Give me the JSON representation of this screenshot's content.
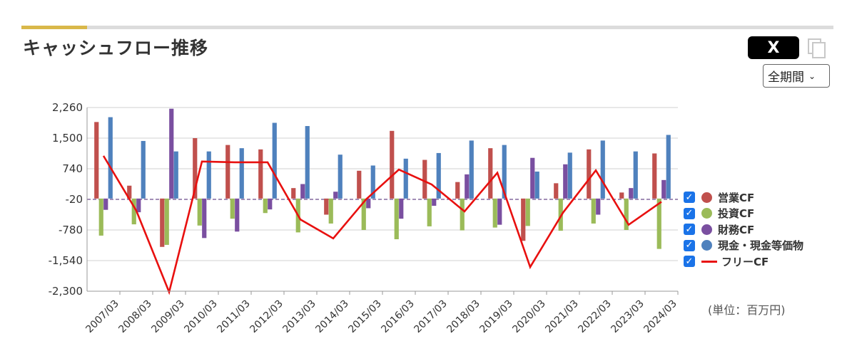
{
  "header": {
    "title": "キャッシュフロー推移",
    "share_label": "X",
    "period_select": "全期間",
    "unit_note": "(単位：百万円)"
  },
  "legend": [
    {
      "label": "営業CF",
      "color": "#c0504d",
      "checked": true
    },
    {
      "label": "投資CF",
      "color": "#9bbb59",
      "checked": true
    },
    {
      "label": "財務CF",
      "color": "#7a4fa0",
      "checked": true
    },
    {
      "label": "現金・現金等価物",
      "color": "#4f81bd",
      "checked": true
    },
    {
      "label": "フリーCF",
      "color": "#e8100f",
      "checked": true
    }
  ],
  "chart_data": {
    "type": "bar",
    "categories": [
      "2007/03",
      "2008/03",
      "2009/03",
      "2010/03",
      "2011/03",
      "2012/03",
      "2013/03",
      "2014/03",
      "2015/03",
      "2016/03",
      "2017/03",
      "2018/03",
      "2019/03",
      "2020/03",
      "2021/03",
      "2022/03",
      "2023/03",
      "2024/03"
    ],
    "yticks": [
      2260,
      1500,
      740,
      -20,
      -780,
      -1540,
      -2300
    ],
    "ytick_labels": [
      "2,260",
      "1,500",
      "740",
      "-20",
      "-780",
      "-1,540",
      "-2,300"
    ],
    "ylim": [
      -2300,
      2260
    ],
    "series": [
      {
        "name": "営業CF",
        "type": "bar",
        "color": "#c0504d",
        "values": [
          1900,
          320,
          -1200,
          1500,
          1330,
          1220,
          260,
          -400,
          690,
          1680,
          960,
          410,
          1250,
          -1050,
          380,
          1220,
          150,
          1120
        ]
      },
      {
        "name": "投資CF",
        "type": "bar",
        "color": "#9bbb59",
        "values": [
          -920,
          -640,
          -1150,
          -670,
          -500,
          -360,
          -840,
          -620,
          -780,
          -1010,
          -690,
          -790,
          -720,
          -680,
          -800,
          -620,
          -780,
          -1250
        ]
      },
      {
        "name": "財務CF",
        "type": "bar",
        "color": "#7a4fa0",
        "values": [
          -280,
          -340,
          2230,
          -980,
          -820,
          -270,
          360,
          170,
          -240,
          -500,
          -180,
          600,
          -650,
          1010,
          850,
          -400,
          260,
          460
        ]
      },
      {
        "name": "現金・現金等価物",
        "type": "bar",
        "color": "#4f81bd",
        "values": [
          2020,
          1430,
          1170,
          1170,
          1250,
          1880,
          1800,
          1090,
          820,
          990,
          1130,
          1440,
          1330,
          670,
          1140,
          1440,
          1170,
          1580
        ]
      },
      {
        "name": "フリーCF",
        "type": "line",
        "color": "#e8100f",
        "values": [
          1060,
          -300,
          -2320,
          920,
          900,
          900,
          -520,
          -990,
          -20,
          720,
          350,
          -320,
          640,
          -1700,
          -350,
          700,
          -650,
          -80
        ]
      }
    ]
  }
}
